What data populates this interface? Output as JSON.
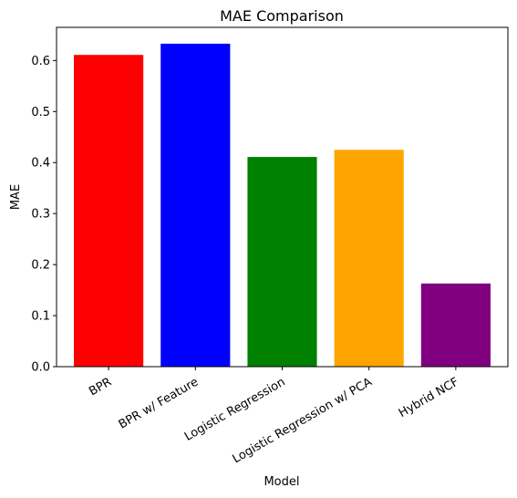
{
  "chart_data": {
    "type": "bar",
    "title": "MAE Comparison",
    "xlabel": "Model",
    "ylabel": "MAE",
    "categories": [
      "BPR",
      "BPR w/ Feature",
      "Logistic Regression",
      "Logistic Regression w/ PCA",
      "Hybrid NCF"
    ],
    "values": [
      0.611,
      0.633,
      0.411,
      0.425,
      0.163
    ],
    "colors": [
      "#ff0000",
      "#0000ff",
      "#008000",
      "#ffa500",
      "#800080"
    ],
    "ylim": [
      0,
      0.665
    ],
    "yticks": [
      0.0,
      0.1,
      0.2,
      0.3,
      0.4,
      0.5,
      0.6
    ],
    "ytick_labels": [
      "0.0",
      "0.1",
      "0.2",
      "0.3",
      "0.4",
      "0.5",
      "0.6"
    ],
    "grid": false,
    "legend": false
  }
}
